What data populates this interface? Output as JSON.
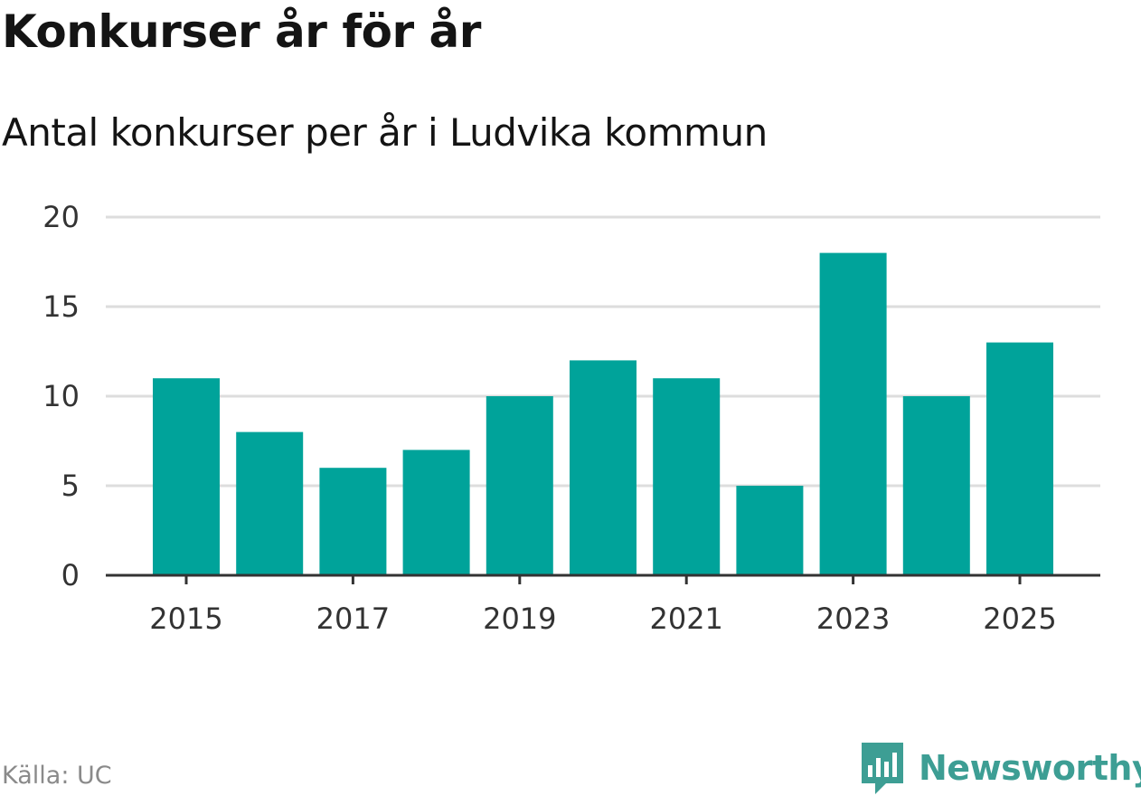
{
  "title": "Konkurser år för år",
  "subtitle": "Antal konkurser per år i Ludvika kommun",
  "source": "Källa: UC",
  "brand": {
    "name": "Newsworthy",
    "icon": "newsworthy-logo-icon",
    "color": "#3d9e94"
  },
  "colors": {
    "bar": "#00a39a",
    "grid": "#dddddd",
    "axis": "#333333",
    "tick_text": "#333333"
  },
  "chart_data": {
    "type": "bar",
    "title": "Konkurser år för år",
    "subtitle": "Antal konkurser per år i Ludvika kommun",
    "categories": [
      "2015",
      "2016",
      "2017",
      "2018",
      "2019",
      "2020",
      "2021",
      "2022",
      "2023",
      "2024",
      "2025"
    ],
    "values": [
      11,
      8,
      6,
      7,
      10,
      12,
      11,
      5,
      18,
      10,
      13
    ],
    "x_tick_labels": [
      "2015",
      "2017",
      "2019",
      "2021",
      "2023",
      "2025"
    ],
    "y_ticks": [
      0,
      5,
      10,
      15,
      20
    ],
    "ylim": [
      0,
      20
    ],
    "xlabel": "",
    "ylabel": "",
    "grid": true,
    "legend": "none"
  }
}
